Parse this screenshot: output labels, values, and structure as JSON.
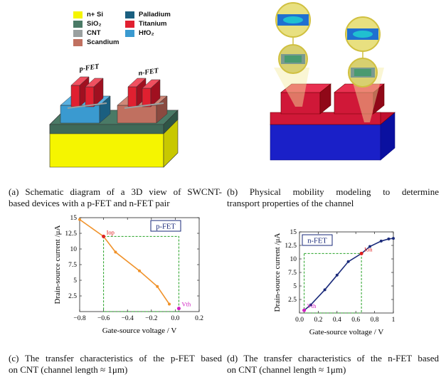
{
  "legend": {
    "left": [
      {
        "label": "n+ Si",
        "color": "#f5f500"
      },
      {
        "label": "SiO₂",
        "color": "#4a7a66"
      },
      {
        "label": "CNT",
        "color": "#9aa0a0"
      },
      {
        "label": "Scandium",
        "color": "#c07060"
      }
    ],
    "right": [
      {
        "label": "Palladium",
        "color": "#1a5f80"
      },
      {
        "label": "Titanium",
        "color": "#e02030"
      },
      {
        "label": "HfO₂",
        "color": "#3a9ad0"
      }
    ]
  },
  "schematic": {
    "pfet_label": "p-FET",
    "nfet_label": "n-FET"
  },
  "captions": {
    "a": {
      "line1": "(a) Schematic diagram of a 3D view of SWCNT-",
      "line2": "based devices with a p-FET and n-FET pair"
    },
    "b": {
      "line1": "(b) Physical mobility modeling to determine",
      "line2": "transport properties of the channel"
    },
    "c": {
      "line1": "(c) The transfer characteristics of the p-FET based",
      "line2": "on CNT (channel length ≈ 1μm)"
    },
    "d": {
      "line1": "(d) The transfer characteristics of the n-FET based",
      "line2": "on CNT (channel length ≈ 1μm)"
    }
  },
  "chart_data": [
    {
      "type": "line",
      "legend_label": "p-FET",
      "xlabel": "Gate-source voltage / V",
      "ylabel": "Drain-source current /μA",
      "xlim": [
        -0.8,
        0.2
      ],
      "ylim": [
        0,
        15
      ],
      "xticks": [
        "−0.8",
        "−0.6",
        "−0.4",
        "−0.2",
        "0.0",
        "0.2"
      ],
      "xtick_values": [
        -0.8,
        -0.6,
        -0.4,
        -0.2,
        0.0,
        0.2
      ],
      "yticks": [
        "2.5",
        "5",
        "7.5",
        "10",
        "12.5",
        "15"
      ],
      "ytick_values": [
        2.5,
        5,
        7.5,
        10,
        12.5,
        15
      ],
      "series_color": "#f0922a",
      "x": [
        -0.8,
        -0.6,
        -0.5,
        -0.3,
        -0.15,
        -0.05
      ],
      "y": [
        14.7,
        12.0,
        9.5,
        6.5,
        4.0,
        1.2
      ],
      "annotations": [
        {
          "text": "Iop",
          "x": -0.6,
          "y": 12.0,
          "color": "#e02020"
        },
        {
          "text": "Vth",
          "x": 0.03,
          "y": 0.5,
          "color": "#d020c0"
        }
      ],
      "guide_box": {
        "x": [
          -0.6,
          0.03
        ],
        "y": [
          0,
          12.0
        ],
        "color": "#22a022"
      }
    },
    {
      "type": "line",
      "legend_label": "n-FET",
      "xlabel": "Gate-source voltage / V",
      "ylabel": "Drain-source current /μA",
      "xlim": [
        0,
        1
      ],
      "ylim": [
        0,
        15
      ],
      "xticks": [
        "0.0",
        "0.2",
        "0.4",
        "0.6",
        "0.8",
        "1"
      ],
      "xtick_values": [
        0,
        0.2,
        0.4,
        0.6,
        0.8,
        1
      ],
      "yticks": [
        "2.5",
        "5",
        "7.5",
        "10",
        "12.5",
        "15"
      ],
      "ytick_values": [
        2.5,
        5,
        7.5,
        10,
        12.5,
        15
      ],
      "series_color": "#1a2a7a",
      "x": [
        0.05,
        0.12,
        0.27,
        0.4,
        0.52,
        0.66,
        0.75,
        0.87,
        0.95,
        1.0
      ],
      "y": [
        0.5,
        1.5,
        4.3,
        7.0,
        9.5,
        11.0,
        12.3,
        13.3,
        13.7,
        13.8
      ],
      "annotations": [
        {
          "text": "Ion",
          "x": 0.66,
          "y": 11.0,
          "color": "#e02020"
        },
        {
          "text": "Vth",
          "x": 0.05,
          "y": 0.5,
          "color": "#d020c0"
        }
      ],
      "guide_box": {
        "x": [
          0.05,
          0.66
        ],
        "y": [
          0,
          11.0
        ],
        "color": "#22a022"
      }
    }
  ]
}
